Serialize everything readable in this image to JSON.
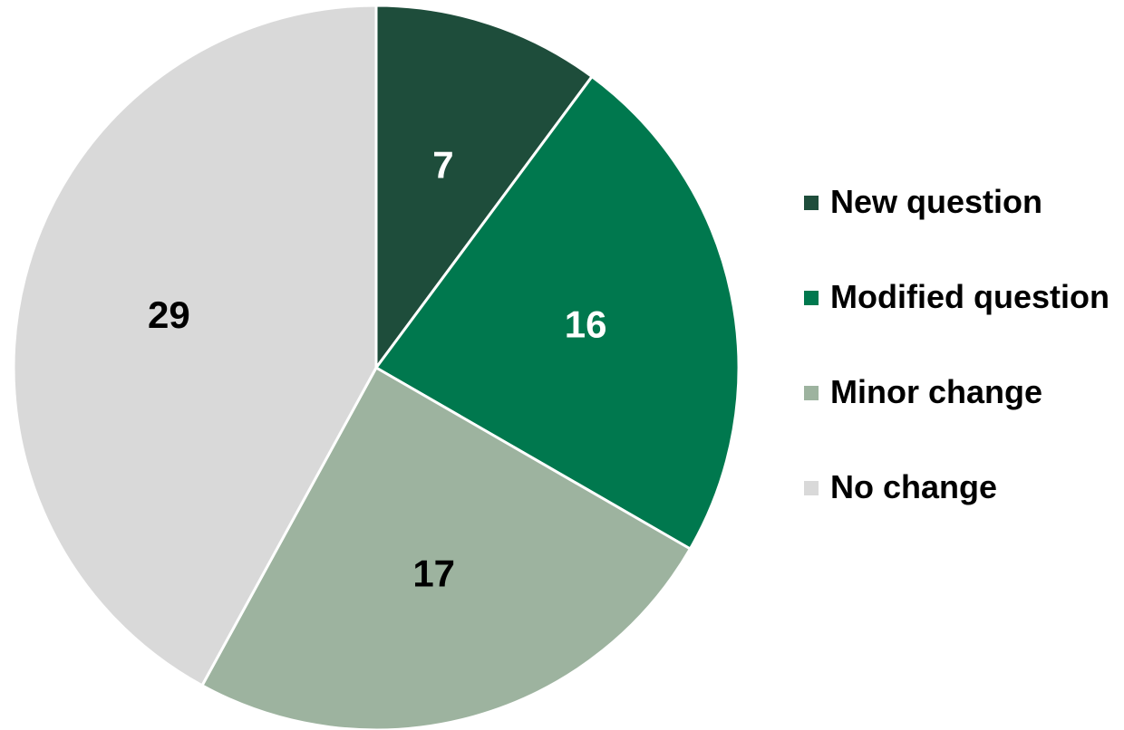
{
  "chart_data": {
    "type": "pie",
    "start_angle_deg": 0,
    "direction": "clockwise",
    "legend_position": "right",
    "slices": [
      {
        "label": "New question",
        "value": 7,
        "color": "#1e4d3b",
        "label_color": "#ffffff"
      },
      {
        "label": "Modified question",
        "value": 16,
        "color": "#00784e",
        "label_color": "#ffffff"
      },
      {
        "label": "Minor change",
        "value": 17,
        "color": "#9db39f",
        "label_color": "#000000"
      },
      {
        "label": "No change",
        "value": 29,
        "color": "#d9d9d9",
        "label_color": "#000000"
      }
    ]
  }
}
